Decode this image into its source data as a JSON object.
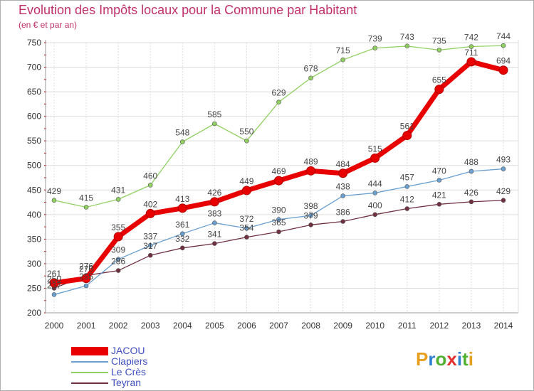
{
  "header": {
    "title": "Evolution des Impôts locaux pour la Commune par Habitant",
    "subtitle": "(en € et par an)"
  },
  "logo": {
    "text": "Proxiti",
    "letters": [
      "P",
      "r",
      "o",
      "x",
      "i",
      "t",
      "i"
    ]
  },
  "chart_data": {
    "type": "line",
    "title": "Evolution des Impôts locaux pour la Commune par Habitant",
    "subtitle": "(en € et par an)",
    "xlabel": "",
    "ylabel": "",
    "x": [
      "2000",
      "2001",
      "2002",
      "2003",
      "2004",
      "2005",
      "2006",
      "2007",
      "2008",
      "2009",
      "2010",
      "2011",
      "2012",
      "2013",
      "2014"
    ],
    "ylim": [
      200,
      750
    ],
    "yticks": [
      200,
      250,
      300,
      350,
      400,
      450,
      500,
      550,
      600,
      650,
      700,
      750
    ],
    "grid": true,
    "legend_position": "bottom-left",
    "series": [
      {
        "name": "JACOU",
        "color": "#e80000",
        "values": [
          261,
          270,
          355,
          402,
          413,
          426,
          449,
          469,
          489,
          484,
          515,
          561,
          655,
          711,
          694
        ],
        "labels": [
          "261",
          "270",
          "355",
          "402",
          "413",
          "426",
          "449",
          "469",
          "489",
          "484",
          "515",
          "561",
          "655",
          "711",
          "694"
        ]
      },
      {
        "name": "Clapiers",
        "color": "#6aa0d0",
        "values": [
          237,
          255,
          309,
          337,
          361,
          383,
          372,
          390,
          398,
          438,
          444,
          457,
          470,
          488,
          493
        ],
        "labels": [
          "237",
          "255",
          "309",
          "337",
          "361",
          "383",
          "372",
          "390",
          "398",
          "438",
          "444",
          "457",
          "470",
          "488",
          "493"
        ]
      },
      {
        "name": "Le Crès",
        "color": "#90d060",
        "values": [
          429,
          415,
          431,
          460,
          548,
          585,
          550,
          629,
          678,
          715,
          739,
          743,
          735,
          742,
          744
        ],
        "labels": [
          "429",
          "415",
          "431",
          "460",
          "548",
          "585",
          "550",
          "629",
          "678",
          "715",
          "739",
          "743",
          "735",
          "742",
          "744"
        ]
      },
      {
        "name": "Teyran",
        "color": "#703040",
        "values": [
          250,
          276,
          286,
          317,
          332,
          341,
          354,
          365,
          379,
          386,
          400,
          412,
          421,
          426,
          429
        ],
        "labels": [
          "250",
          "276",
          "286",
          "317",
          "332",
          "341",
          "354",
          "365",
          "379",
          "386",
          "400",
          "412",
          "421",
          "426",
          "429"
        ]
      }
    ]
  },
  "colors": {
    "title": "#c0306a",
    "grid": "#dddddd",
    "axis_text": "#333333",
    "legend_text": "#4050c0"
  }
}
